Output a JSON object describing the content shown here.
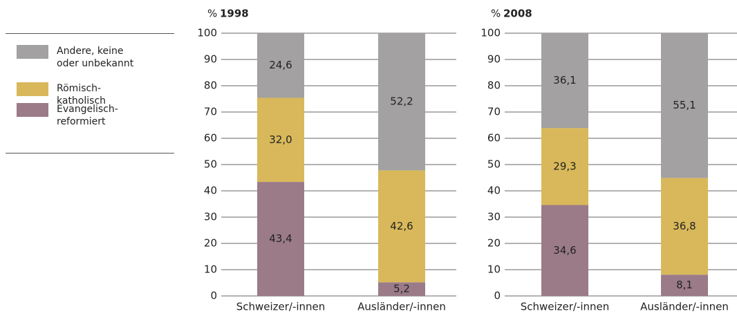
{
  "chart_data": [
    {
      "type": "bar",
      "stacked": true,
      "title": "1998",
      "ylabel": "%",
      "categories": [
        "Schweizer/-innen",
        "Ausländer/-innen"
      ],
      "series": [
        {
          "name": "Evangelisch-reformiert",
          "color": "#9b7b88",
          "values": [
            43.4,
            5.2
          ],
          "value_labels": [
            "43,4",
            "5,2"
          ]
        },
        {
          "name": "Römisch-katholisch",
          "color": "#d8b85a",
          "values": [
            32.0,
            42.6
          ],
          "value_labels": [
            "32,0",
            "42,6"
          ]
        },
        {
          "name": "Andere, keine oder unbekannt",
          "color": "#a3a1a1",
          "values": [
            24.6,
            52.2
          ],
          "value_labels": [
            "24,6",
            "52,2"
          ]
        }
      ],
      "ylim": [
        0,
        100
      ],
      "yticks": [
        0,
        10,
        20,
        30,
        40,
        50,
        60,
        70,
        80,
        90,
        100
      ],
      "grid": true
    },
    {
      "type": "bar",
      "stacked": true,
      "title": "2008",
      "ylabel": "%",
      "categories": [
        "Schweizer/-innen",
        "Ausländer/-innen"
      ],
      "series": [
        {
          "color": "#9b7b88",
          "values": [
            34.6,
            8.1
          ],
          "value_labels": [
            "34,6",
            "8,1"
          ]
        },
        {
          "color": "#d8b85a",
          "values": [
            29.3,
            36.8
          ],
          "value_labels": [
            "29,3",
            "36,8"
          ]
        },
        {
          "color": "#a3a1a1",
          "values": [
            36.1,
            55.1
          ],
          "value_labels": [
            "36,1",
            "55,1"
          ]
        }
      ],
      "ylim": [
        0,
        100
      ],
      "yticks": [
        0,
        10,
        20,
        30,
        40,
        50,
        60,
        70,
        80,
        90,
        100
      ],
      "grid": true
    }
  ]
}
